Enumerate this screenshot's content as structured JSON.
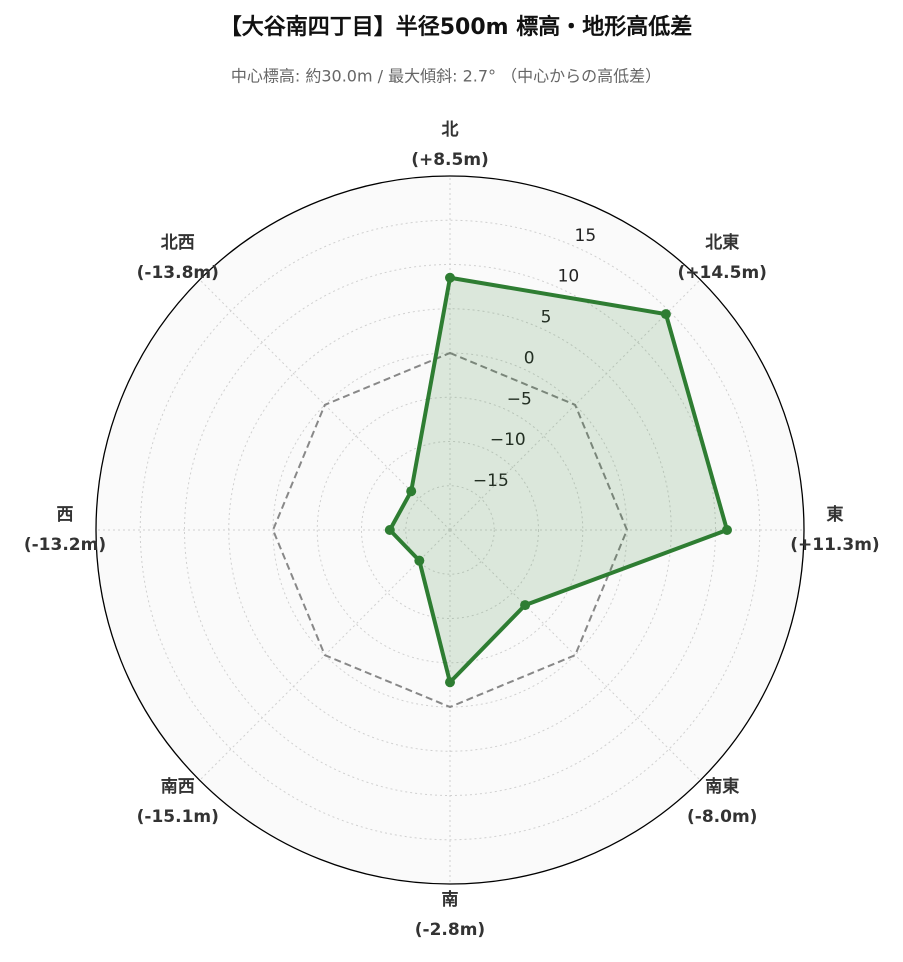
{
  "chart_data": {
    "type": "radar",
    "title": "【大谷南四丁目】半径500m 標高・地形高低差",
    "subtitle": "中心標高: 約30.0m / 最大傾斜: 2.7° （中心からの高低差）",
    "categories": [
      "北",
      "北東",
      "東",
      "南東",
      "南",
      "南西",
      "西",
      "北西"
    ],
    "series": [
      {
        "color": "#2e7d32",
        "values": [
          8.5,
          14.5,
          11.3,
          -8.0,
          -2.8,
          -15.1,
          -13.2,
          -13.8
        ],
        "value_labels": [
          "(+8.5m)",
          "(+14.5m)",
          "(+11.3m)",
          "(-8.0m)",
          "(-2.8m)",
          "(-15.1m)",
          "(-13.2m)",
          "(-13.8m)"
        ]
      }
    ],
    "reference_line": {
      "value": 0,
      "color": "#888888",
      "style": "dashed"
    },
    "ylim": [
      -20,
      20
    ],
    "yticks": [
      {
        "value": -15,
        "label": "−15"
      },
      {
        "value": -10,
        "label": "−10"
      },
      {
        "value": -5,
        "label": "−5"
      },
      0,
      5,
      10,
      15
    ],
    "grid": true
  }
}
